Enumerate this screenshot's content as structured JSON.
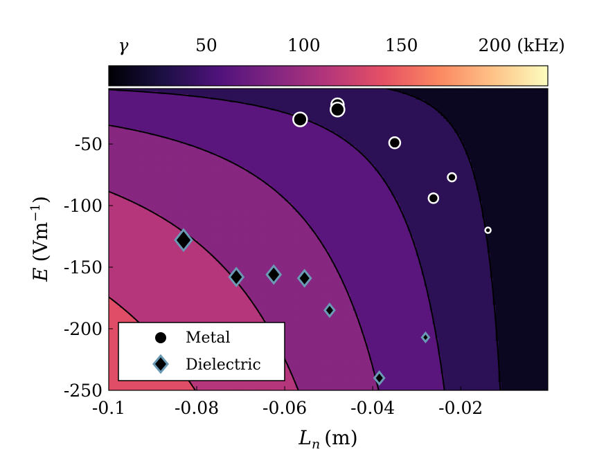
{
  "chart_data": {
    "type": "contour",
    "colorbar": {
      "symbol": "γ",
      "ticks": [
        {
          "value": 50,
          "label": "50"
        },
        {
          "value": 100,
          "label": "100"
        },
        {
          "value": 150,
          "label": "150"
        },
        {
          "value": 200,
          "label": "200 (kHz)"
        }
      ],
      "range": [
        0,
        225
      ],
      "colormap": [
        "#000004",
        "#1c1044",
        "#4f127b",
        "#812581",
        "#b5367a",
        "#e55064",
        "#fb8761",
        "#fec287",
        "#fcfdbf"
      ]
    },
    "xlabel": "L",
    "xlabel_sub": "n",
    "xlabel_unit": "(m)",
    "ylabel": "E",
    "ylabel_unit": "(Vm",
    "ylabel_exp": "−1",
    "xlim": [
      -0.1,
      -0.0002
    ],
    "ylim": [
      -250,
      -5
    ],
    "x_ticks": [
      {
        "value": -0.1,
        "label": "-0.1"
      },
      {
        "value": -0.08,
        "label": "-0.08"
      },
      {
        "value": -0.06,
        "label": "-0.06"
      },
      {
        "value": -0.04,
        "label": "-0.04"
      },
      {
        "value": -0.02,
        "label": "-0.02"
      }
    ],
    "y_ticks": [
      {
        "value": -50,
        "label": "-50"
      },
      {
        "value": -100,
        "label": "-100"
      },
      {
        "value": -150,
        "label": "-150"
      },
      {
        "value": -200,
        "label": "-200"
      },
      {
        "value": -250,
        "label": "-250"
      }
    ],
    "contour_levels": [
      25,
      50,
      75,
      100,
      125,
      150,
      175,
      200
    ],
    "series": [
      {
        "name": "Metal",
        "marker": "circle",
        "points": [
          {
            "x": -0.0565,
            "y": -30,
            "size": 10
          },
          {
            "x": -0.048,
            "y": -18,
            "size": 9
          },
          {
            "x": -0.048,
            "y": -22,
            "size": 10
          },
          {
            "x": -0.035,
            "y": -49,
            "size": 8
          },
          {
            "x": -0.0262,
            "y": -94,
            "size": 7
          },
          {
            "x": -0.022,
            "y": -77,
            "size": 6
          },
          {
            "x": -0.0138,
            "y": -120,
            "size": 4
          }
        ]
      },
      {
        "name": "Dielectric",
        "marker": "diamond",
        "points": [
          {
            "x": -0.083,
            "y": -128,
            "size": 12
          },
          {
            "x": -0.071,
            "y": -158,
            "size": 10
          },
          {
            "x": -0.0625,
            "y": -156,
            "size": 10
          },
          {
            "x": -0.0555,
            "y": -159,
            "size": 9
          },
          {
            "x": -0.0498,
            "y": -185,
            "size": 7
          },
          {
            "x": -0.0385,
            "y": -240,
            "size": 7
          },
          {
            "x": -0.028,
            "y": -207,
            "size": 5
          }
        ]
      }
    ],
    "legend": {
      "position": "bottom-left"
    }
  }
}
